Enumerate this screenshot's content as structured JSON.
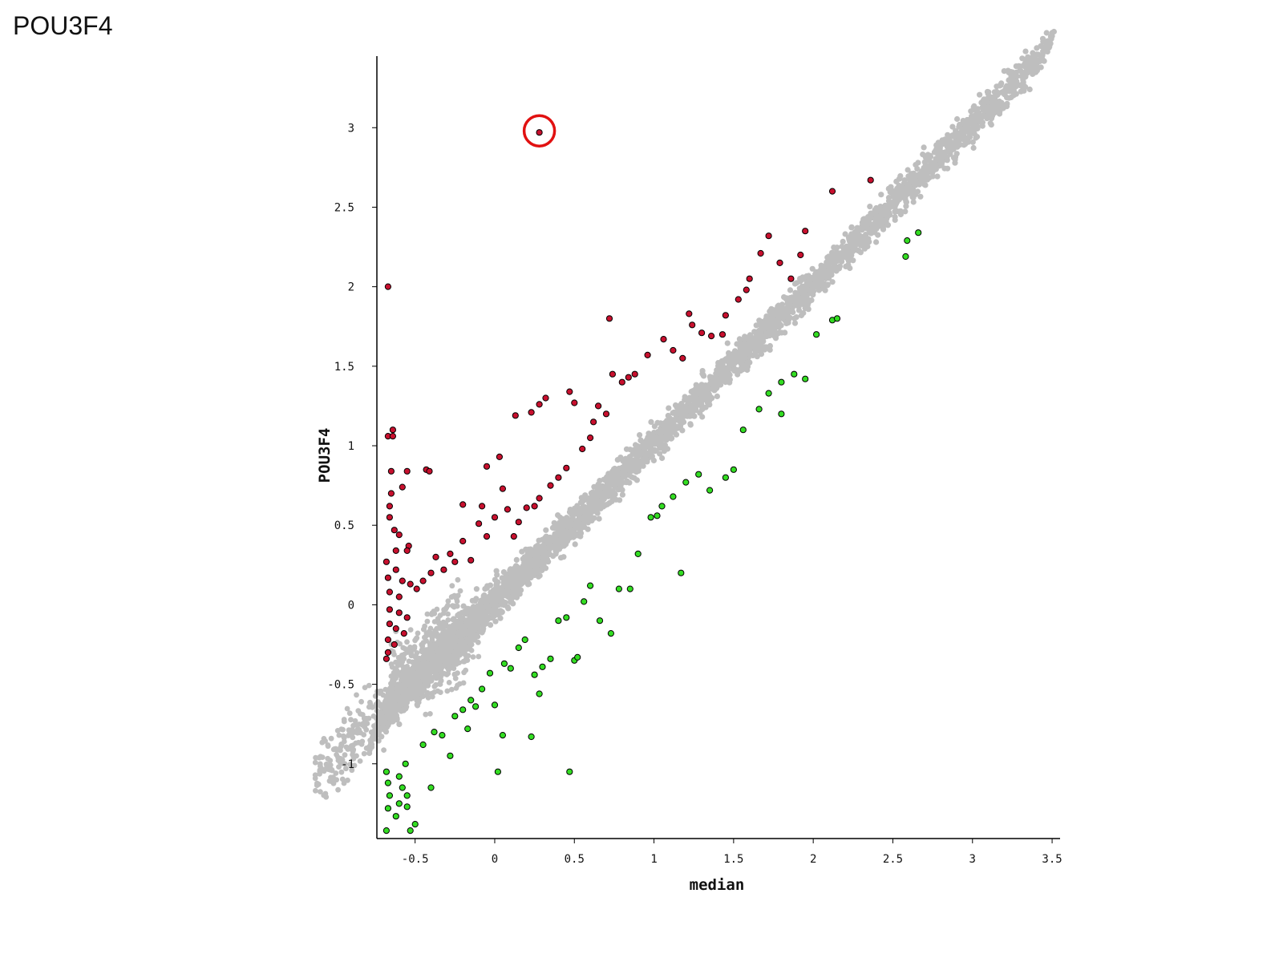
{
  "slide": {
    "title": "POU3F4"
  },
  "chart_data": {
    "type": "scatter",
    "title": "",
    "xlabel": "median",
    "ylabel": "POU3F4",
    "xlim": [
      -0.74,
      3.55
    ],
    "ylim": [
      -1.47,
      3.45
    ],
    "xticks": [
      -0.5,
      0,
      0.5,
      1,
      1.5,
      2,
      2.5,
      3,
      3.5
    ],
    "xtick_labels": [
      "-0.5",
      "0",
      "0.5",
      "1",
      "1.5",
      "2",
      "2.5",
      "3",
      "3.5"
    ],
    "yticks": [
      -1,
      -0.5,
      0,
      0.5,
      1,
      1.5,
      2,
      2.5,
      3
    ],
    "ytick_labels": [
      "-1",
      "-0.5",
      "0",
      "0.5",
      "1",
      "1.5",
      "2",
      "2.5",
      "3"
    ],
    "grid": false,
    "colors": {
      "background_genes": "#bebebe",
      "up": "#c8102e",
      "down": "#33dd22",
      "highlight": "#e11111",
      "axis": "#000000"
    },
    "series": [
      {
        "points": [
          [
            -0.67,
            2.0
          ],
          [
            -0.67,
            1.06
          ],
          [
            -0.64,
            1.1
          ],
          [
            -0.64,
            1.06
          ],
          [
            -0.65,
            0.84
          ],
          [
            -0.55,
            0.84
          ],
          [
            -0.43,
            0.85
          ],
          [
            -0.41,
            0.84
          ],
          [
            -0.58,
            0.74
          ],
          [
            -0.65,
            0.7
          ],
          [
            -0.66,
            0.62
          ],
          [
            -0.66,
            0.55
          ],
          [
            -0.63,
            0.47
          ],
          [
            -0.6,
            0.44
          ],
          [
            -0.54,
            0.37
          ],
          [
            -0.62,
            0.34
          ],
          [
            -0.55,
            0.34
          ],
          [
            -0.68,
            0.27
          ],
          [
            -0.62,
            0.22
          ],
          [
            -0.67,
            0.17
          ],
          [
            -0.58,
            0.15
          ],
          [
            -0.53,
            0.13
          ],
          [
            -0.66,
            0.08
          ],
          [
            -0.6,
            0.05
          ],
          [
            -0.66,
            -0.03
          ],
          [
            -0.6,
            -0.05
          ],
          [
            -0.55,
            -0.08
          ],
          [
            -0.66,
            -0.12
          ],
          [
            -0.62,
            -0.15
          ],
          [
            -0.57,
            -0.18
          ],
          [
            -0.67,
            -0.22
          ],
          [
            -0.63,
            -0.25
          ],
          [
            -0.67,
            -0.3
          ],
          [
            -0.68,
            -0.34
          ],
          [
            -0.49,
            0.1
          ],
          [
            -0.45,
            0.15
          ],
          [
            -0.4,
            0.2
          ],
          [
            -0.37,
            0.3
          ],
          [
            -0.32,
            0.22
          ],
          [
            -0.28,
            0.32
          ],
          [
            -0.25,
            0.27
          ],
          [
            -0.2,
            0.63
          ],
          [
            -0.2,
            0.4
          ],
          [
            -0.15,
            0.28
          ],
          [
            -0.1,
            0.51
          ],
          [
            -0.08,
            0.62
          ],
          [
            -0.05,
            0.43
          ],
          [
            0.0,
            0.55
          ],
          [
            -0.05,
            0.87
          ],
          [
            0.03,
            0.93
          ],
          [
            0.05,
            0.73
          ],
          [
            0.08,
            0.6
          ],
          [
            0.12,
            0.43
          ],
          [
            0.15,
            0.52
          ],
          [
            0.2,
            0.61
          ],
          [
            0.25,
            0.62
          ],
          [
            0.28,
            0.67
          ],
          [
            0.23,
            1.21
          ],
          [
            0.28,
            1.26
          ],
          [
            0.32,
            1.3
          ],
          [
            0.13,
            1.19
          ],
          [
            0.35,
            0.75
          ],
          [
            0.4,
            0.8
          ],
          [
            0.45,
            0.86
          ],
          [
            0.47,
            1.34
          ],
          [
            0.5,
            1.27
          ],
          [
            0.55,
            0.98
          ],
          [
            0.6,
            1.05
          ],
          [
            0.62,
            1.15
          ],
          [
            0.65,
            1.25
          ],
          [
            0.7,
            1.2
          ],
          [
            0.74,
            1.45
          ],
          [
            0.72,
            1.8
          ],
          [
            0.8,
            1.4
          ],
          [
            0.84,
            1.43
          ],
          [
            0.88,
            1.45
          ],
          [
            0.96,
            1.57
          ],
          [
            1.06,
            1.67
          ],
          [
            1.12,
            1.6
          ],
          [
            1.18,
            1.55
          ],
          [
            1.22,
            1.83
          ],
          [
            1.24,
            1.76
          ],
          [
            1.3,
            1.71
          ],
          [
            1.36,
            1.69
          ],
          [
            1.45,
            1.82
          ],
          [
            1.53,
            1.92
          ],
          [
            1.6,
            2.05
          ],
          [
            1.67,
            2.21
          ],
          [
            1.72,
            2.32
          ],
          [
            1.79,
            2.15
          ],
          [
            1.86,
            2.05
          ],
          [
            1.92,
            2.2
          ],
          [
            1.95,
            2.35
          ],
          [
            2.12,
            2.6
          ],
          [
            2.36,
            2.67
          ],
          [
            1.58,
            1.98
          ],
          [
            1.43,
            1.7
          ]
        ]
      },
      {
        "points": [
          [
            -0.68,
            -1.05
          ],
          [
            -0.67,
            -1.12
          ],
          [
            -0.66,
            -1.2
          ],
          [
            -0.67,
            -1.28
          ],
          [
            -0.68,
            -1.42
          ],
          [
            -0.6,
            -1.08
          ],
          [
            -0.58,
            -1.15
          ],
          [
            -0.55,
            -1.27
          ],
          [
            -0.53,
            -1.42
          ],
          [
            -0.56,
            -1.0
          ],
          [
            -0.5,
            -1.38
          ],
          [
            -0.4,
            -1.15
          ],
          [
            -0.45,
            -0.88
          ],
          [
            -0.38,
            -0.8
          ],
          [
            -0.33,
            -0.82
          ],
          [
            -0.28,
            -0.95
          ],
          [
            -0.25,
            -0.7
          ],
          [
            -0.2,
            -0.66
          ],
          [
            -0.17,
            -0.78
          ],
          [
            -0.15,
            -0.6
          ],
          [
            -0.12,
            -0.64
          ],
          [
            -0.08,
            -0.53
          ],
          [
            -0.03,
            -0.43
          ],
          [
            0.0,
            -0.63
          ],
          [
            0.02,
            -1.05
          ],
          [
            0.05,
            -0.82
          ],
          [
            0.06,
            -0.37
          ],
          [
            0.1,
            -0.4
          ],
          [
            0.15,
            -0.27
          ],
          [
            0.19,
            -0.22
          ],
          [
            0.23,
            -0.83
          ],
          [
            0.25,
            -0.44
          ],
          [
            0.28,
            -0.56
          ],
          [
            0.3,
            -0.39
          ],
          [
            0.35,
            -0.34
          ],
          [
            0.4,
            -0.1
          ],
          [
            0.45,
            -0.08
          ],
          [
            0.47,
            -1.05
          ],
          [
            0.5,
            -0.35
          ],
          [
            0.52,
            -0.33
          ],
          [
            0.56,
            0.02
          ],
          [
            0.6,
            0.12
          ],
          [
            0.66,
            -0.1
          ],
          [
            0.73,
            -0.18
          ],
          [
            0.78,
            0.1
          ],
          [
            0.85,
            0.1
          ],
          [
            0.9,
            0.32
          ],
          [
            0.98,
            0.55
          ],
          [
            1.02,
            0.56
          ],
          [
            1.05,
            0.62
          ],
          [
            1.12,
            0.68
          ],
          [
            1.17,
            0.2
          ],
          [
            1.2,
            0.77
          ],
          [
            1.28,
            0.82
          ],
          [
            1.35,
            0.72
          ],
          [
            1.45,
            0.8
          ],
          [
            1.5,
            0.85
          ],
          [
            1.56,
            1.1
          ],
          [
            1.66,
            1.23
          ],
          [
            1.8,
            1.2
          ],
          [
            1.72,
            1.33
          ],
          [
            1.8,
            1.4
          ],
          [
            1.88,
            1.45
          ],
          [
            1.95,
            1.42
          ],
          [
            2.02,
            1.7
          ],
          [
            2.12,
            1.79
          ],
          [
            2.15,
            1.8
          ],
          [
            2.59,
            2.29
          ],
          [
            2.66,
            2.34
          ],
          [
            2.58,
            2.19
          ],
          [
            -0.6,
            -1.25
          ],
          [
            -0.62,
            -1.33
          ],
          [
            -0.55,
            -1.2
          ]
        ]
      }
    ],
    "highlighted_point": [
      0.28,
      2.97
    ]
  }
}
